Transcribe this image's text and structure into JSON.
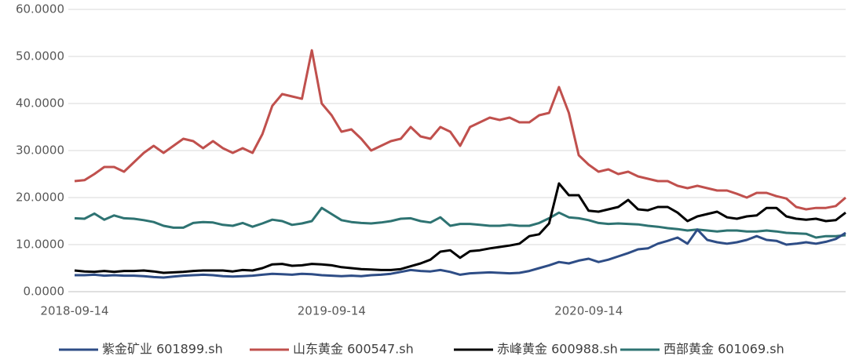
{
  "chart_data": {
    "type": "line",
    "categories": [
      "2018-09-14",
      null,
      null,
      null,
      null,
      null,
      null,
      null,
      null,
      null,
      null,
      null,
      null,
      null,
      null,
      null,
      null,
      null,
      null,
      null,
      null,
      null,
      null,
      null,
      null,
      null,
      "2019-09-14",
      null,
      null,
      null,
      null,
      null,
      null,
      null,
      null,
      null,
      null,
      null,
      null,
      null,
      null,
      null,
      null,
      null,
      null,
      null,
      null,
      null,
      null,
      null,
      null,
      null,
      "2020-09-14",
      null,
      null,
      null,
      null,
      null,
      null,
      null,
      null,
      null,
      null,
      null,
      null,
      null,
      null,
      null,
      null,
      null,
      null,
      null,
      null,
      null,
      null,
      null,
      null,
      null,
      null
    ],
    "series": [
      {
        "name": "紫金矿业 601899.sh",
        "color": "#2e4d86",
        "values": [
          3.5,
          3.5,
          3.6,
          3.4,
          3.5,
          3.4,
          3.4,
          3.3,
          3.1,
          3.0,
          3.2,
          3.4,
          3.5,
          3.6,
          3.5,
          3.3,
          3.2,
          3.3,
          3.4,
          3.6,
          3.8,
          3.7,
          3.6,
          3.8,
          3.7,
          3.5,
          3.4,
          3.3,
          3.4,
          3.3,
          3.5,
          3.6,
          3.8,
          4.2,
          4.6,
          4.4,
          4.3,
          4.6,
          4.2,
          3.6,
          3.9,
          4.0,
          4.1,
          4.0,
          3.9,
          4.0,
          4.4,
          5.0,
          5.6,
          6.3,
          6.0,
          6.6,
          7.0,
          6.3,
          6.8,
          7.5,
          8.2,
          9.0,
          9.2,
          10.2,
          10.8,
          11.5,
          10.2,
          13.2,
          11.0,
          10.5,
          10.2,
          10.5,
          11.0,
          11.8,
          11.0,
          10.8,
          10.0,
          10.2,
          10.5,
          10.2,
          10.6,
          11.2,
          12.5
        ]
      },
      {
        "name": "山东黄金 600547.sh",
        "color": "#c0504d",
        "values": [
          23.5,
          23.7,
          25,
          26.5,
          26.5,
          25.5,
          27.5,
          29.5,
          31,
          29.5,
          31,
          32.5,
          32,
          30.5,
          32,
          30.5,
          29.5,
          30.5,
          29.5,
          33.5,
          39.5,
          42,
          41.5,
          41,
          51.3,
          40,
          37.5,
          34,
          34.5,
          32.5,
          30,
          31,
          32,
          32.5,
          35,
          33,
          32.5,
          35,
          34,
          31,
          35,
          36,
          37,
          36.5,
          37,
          36,
          36,
          37.5,
          38,
          43.5,
          38,
          29,
          27,
          25.5,
          26,
          25,
          25.5,
          24.5,
          24,
          23.5,
          23.5,
          22.5,
          22,
          22.5,
          22,
          21.5,
          21.5,
          20.8,
          20,
          21,
          21,
          20.3,
          19.8,
          18,
          17.5,
          17.8,
          17.8,
          18.2,
          20
        ]
      },
      {
        "name": "赤峰黄金 600988.sh",
        "color": "#000000",
        "values": [
          4.5,
          4.3,
          4.2,
          4.4,
          4.2,
          4.4,
          4.4,
          4.5,
          4.3,
          4.0,
          4.1,
          4.2,
          4.4,
          4.5,
          4.5,
          4.5,
          4.3,
          4.6,
          4.5,
          5.0,
          5.8,
          5.9,
          5.5,
          5.6,
          5.9,
          5.8,
          5.6,
          5.2,
          5.0,
          4.8,
          4.7,
          4.6,
          4.6,
          4.8,
          5.4,
          6.0,
          6.8,
          8.5,
          8.8,
          7.2,
          8.6,
          8.8,
          9.2,
          9.5,
          9.8,
          10.2,
          11.8,
          12.2,
          14.5,
          23.0,
          20.5,
          20.5,
          17.2,
          17.0,
          17.5,
          18.0,
          19.5,
          17.5,
          17.3,
          18.0,
          18.0,
          16.8,
          15.0,
          16.0,
          16.5,
          17.0,
          15.8,
          15.5,
          16.0,
          16.2,
          17.8,
          17.8,
          16.0,
          15.5,
          15.3,
          15.5,
          15.0,
          15.2,
          16.8
        ]
      },
      {
        "name": "西部黄金 601069.sh",
        "color": "#2e7372",
        "values": [
          15.6,
          15.5,
          16.6,
          15.3,
          16.2,
          15.6,
          15.5,
          15.2,
          14.8,
          14.0,
          13.6,
          13.6,
          14.6,
          14.8,
          14.7,
          14.2,
          14.0,
          14.6,
          13.8,
          14.5,
          15.3,
          15.0,
          14.2,
          14.5,
          15.0,
          17.8,
          16.5,
          15.2,
          14.8,
          14.6,
          14.5,
          14.7,
          15.0,
          15.5,
          15.6,
          15.0,
          14.7,
          15.8,
          14.0,
          14.4,
          14.4,
          14.2,
          14.0,
          14.0,
          14.2,
          14.0,
          14.0,
          14.6,
          15.6,
          16.8,
          15.8,
          15.6,
          15.2,
          14.6,
          14.4,
          14.5,
          14.4,
          14.3,
          14.0,
          13.8,
          13.5,
          13.3,
          13.0,
          13.2,
          13.0,
          12.8,
          13.0,
          13.0,
          12.8,
          12.8,
          13.0,
          12.8,
          12.5,
          12.4,
          12.3,
          11.5,
          11.8,
          11.8,
          12.0
        ]
      }
    ],
    "ylim": [
      0,
      60
    ],
    "yticks": [
      {
        "value": 0,
        "label": "0.0000"
      },
      {
        "value": 10,
        "label": "10.0000"
      },
      {
        "value": 20,
        "label": "20.0000"
      },
      {
        "value": 30,
        "label": "30.0000"
      },
      {
        "value": 40,
        "label": "40.0000"
      },
      {
        "value": 50,
        "label": "50.0000"
      },
      {
        "value": 60,
        "label": "60.0000"
      }
    ],
    "grid": true,
    "legend": "bottom"
  }
}
